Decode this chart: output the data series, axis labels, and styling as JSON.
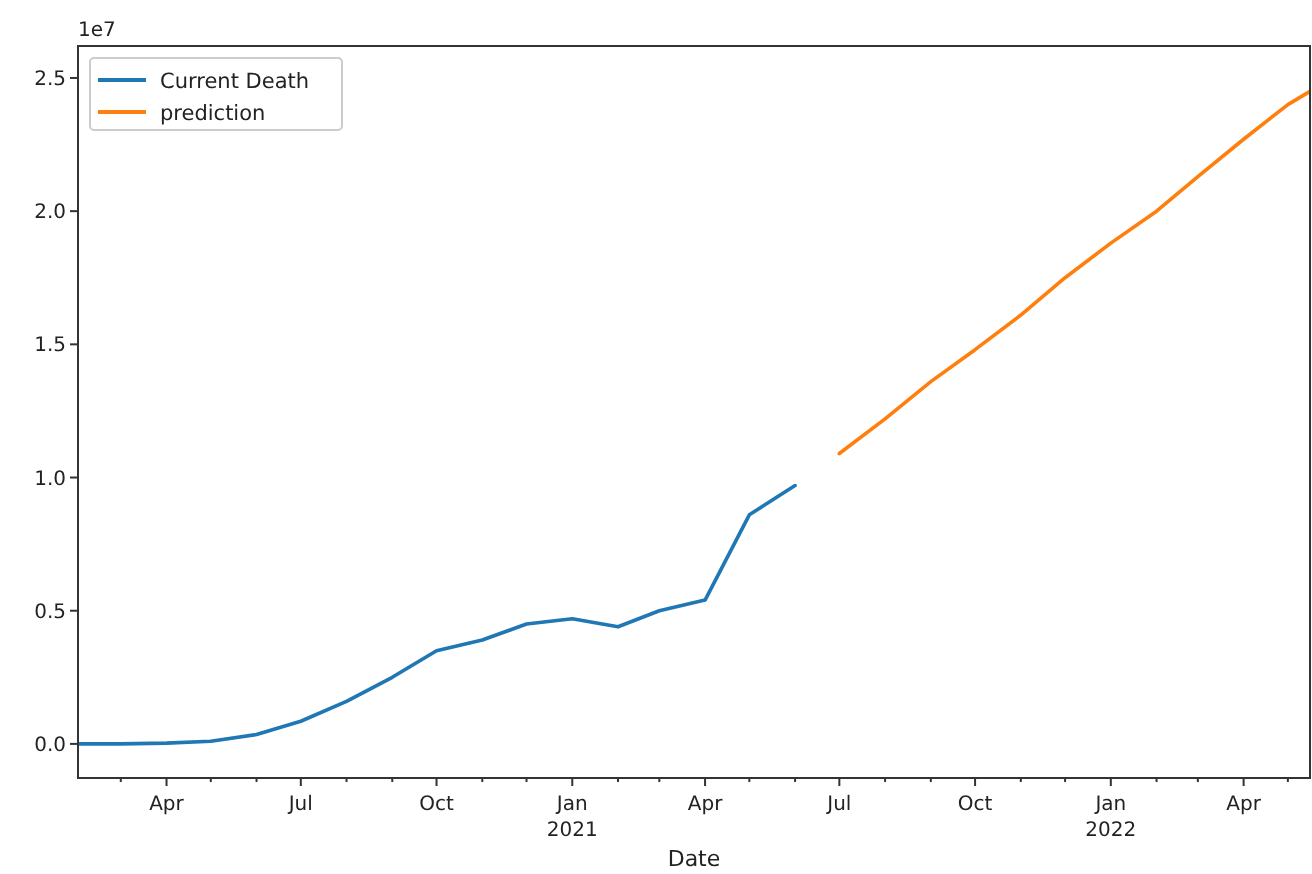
{
  "chart_data": {
    "type": "line",
    "xlabel": "Date",
    "annotations": [
      "1e7"
    ],
    "xlim": [
      "2020-02",
      "2022-05-16"
    ],
    "xticks": [
      {
        "value": "2020-03",
        "label": null
      },
      {
        "value": "2020-04",
        "label": "Apr"
      },
      {
        "value": "2020-05",
        "label": null
      },
      {
        "value": "2020-06",
        "label": null
      },
      {
        "value": "2020-07",
        "label": "Jul"
      },
      {
        "value": "2020-08",
        "label": null
      },
      {
        "value": "2020-09",
        "label": null
      },
      {
        "value": "2020-10",
        "label": "Oct"
      },
      {
        "value": "2020-11",
        "label": null
      },
      {
        "value": "2020-12",
        "label": null
      },
      {
        "value": "2021-01",
        "label": "Jan\n2021"
      },
      {
        "value": "2021-02",
        "label": null
      },
      {
        "value": "2021-03",
        "label": null
      },
      {
        "value": "2021-04",
        "label": "Apr"
      },
      {
        "value": "2021-05",
        "label": null
      },
      {
        "value": "2021-06",
        "label": null
      },
      {
        "value": "2021-07",
        "label": "Jul"
      },
      {
        "value": "2021-08",
        "label": null
      },
      {
        "value": "2021-09",
        "label": null
      },
      {
        "value": "2021-10",
        "label": "Oct"
      },
      {
        "value": "2021-11",
        "label": null
      },
      {
        "value": "2021-12",
        "label": null
      },
      {
        "value": "2022-01",
        "label": "Jan\n2022"
      },
      {
        "value": "2022-02",
        "label": null
      },
      {
        "value": "2022-03",
        "label": null
      },
      {
        "value": "2022-04",
        "label": "Apr"
      },
      {
        "value": "2022-05",
        "label": null
      }
    ],
    "ylim": [
      -0.128,
      2.62
    ],
    "yticks": [
      {
        "value": 0,
        "label": "0.0"
      },
      0.5,
      {
        "value": 1,
        "label": "1.0"
      },
      1.5,
      {
        "value": 2,
        "label": "2.0"
      },
      2.5
    ],
    "grid": false,
    "legend": "top left",
    "line_style": "solid",
    "marker": "none",
    "series": [
      {
        "name": "Current Death",
        "color": "#1f77b4",
        "x": [
          "2020-02",
          "2020-03",
          "2020-04",
          "2020-05",
          "2020-06",
          "2020-07",
          "2020-08",
          "2020-09",
          "2020-10",
          "2020-11",
          "2020-12",
          "2021-01",
          "2021-02",
          "2021-03",
          "2021-04",
          "2021-05",
          "2021-06"
        ],
        "values": [
          0,
          0,
          0.003,
          0.01,
          0.035,
          0.085,
          0.16,
          0.25,
          0.35,
          0.39,
          0.45,
          0.47,
          0.44,
          0.5,
          0.54,
          0.86,
          0.97
        ]
      },
      {
        "name": "prediction",
        "color": "#ff7f0e",
        "x": [
          "2021-07",
          "2021-08",
          "2021-09",
          "2021-10",
          "2021-11",
          "2021-12",
          "2022-01",
          "2022-02",
          "2022-03",
          "2022-04",
          "2022-05",
          "2022-05-16"
        ],
        "values": [
          1.09,
          1.22,
          1.36,
          1.48,
          1.61,
          1.75,
          1.88,
          2.0,
          2.13,
          2.27,
          2.4,
          2.45
        ]
      }
    ]
  }
}
